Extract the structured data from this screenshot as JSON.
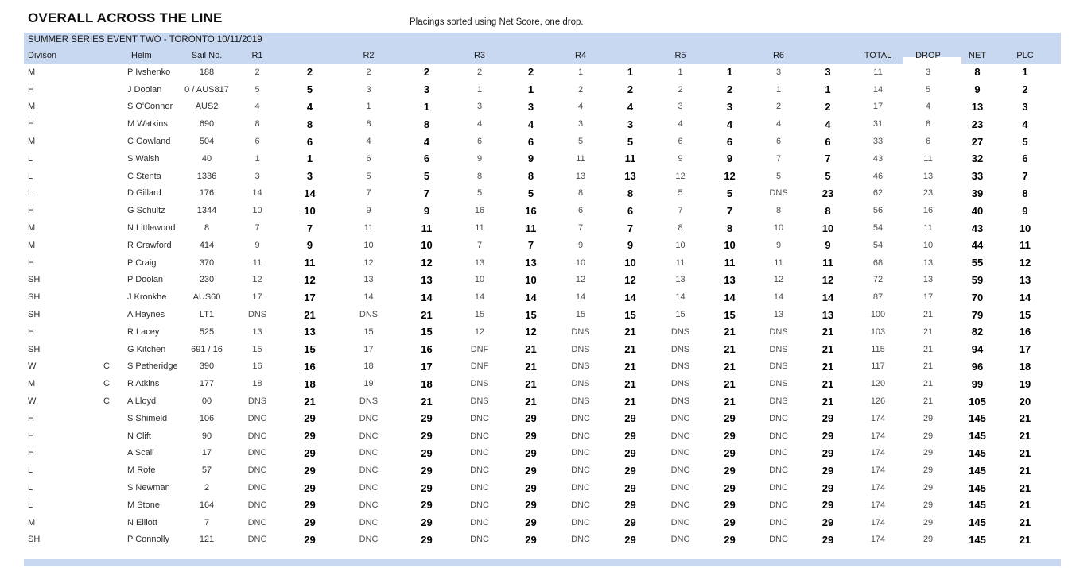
{
  "page": {
    "title": "OVERALL ACROSS THE LINE",
    "subtitle": "Placings sorted using Net Score, one drop.",
    "series_title": "SUMMER SERIES EVENT TWO - TORONTO 10/11/2019"
  },
  "colors": {
    "header_band": "#c9d8f1"
  },
  "table": {
    "headers": {
      "division": "Divison",
      "helm": "Helm",
      "sail_no": "Sail No.",
      "races": [
        "R1",
        "R2",
        "R3",
        "R4",
        "R5",
        "R6"
      ],
      "total": "TOTAL",
      "drop": "DROP",
      "net": "NET",
      "plc": "PLC"
    },
    "rows": [
      {
        "division": "M",
        "crew": "",
        "helm": "P Ivshenko",
        "sail": "188",
        "r": [
          "2",
          "2",
          "2",
          "2",
          "2",
          "2",
          "1",
          "1",
          "1",
          "1",
          "3",
          "3"
        ],
        "total": "11",
        "drop": "3",
        "net": "8",
        "plc": "1"
      },
      {
        "division": "H",
        "crew": "",
        "helm": "J Doolan",
        "sail": "0 / AUS817",
        "r": [
          "5",
          "5",
          "3",
          "3",
          "1",
          "1",
          "2",
          "2",
          "2",
          "2",
          "1",
          "1"
        ],
        "total": "14",
        "drop": "5",
        "net": "9",
        "plc": "2"
      },
      {
        "division": "M",
        "crew": "",
        "helm": "S O'Connor",
        "sail": "AUS2",
        "r": [
          "4",
          "4",
          "1",
          "1",
          "3",
          "3",
          "4",
          "4",
          "3",
          "3",
          "2",
          "2"
        ],
        "total": "17",
        "drop": "4",
        "net": "13",
        "plc": "3"
      },
      {
        "division": "H",
        "crew": "",
        "helm": "M Watkins",
        "sail": "690",
        "r": [
          "8",
          "8",
          "8",
          "8",
          "4",
          "4",
          "3",
          "3",
          "4",
          "4",
          "4",
          "4"
        ],
        "total": "31",
        "drop": "8",
        "net": "23",
        "plc": "4"
      },
      {
        "division": "M",
        "crew": "",
        "helm": "C Gowland",
        "sail": "504",
        "r": [
          "6",
          "6",
          "4",
          "4",
          "6",
          "6",
          "5",
          "5",
          "6",
          "6",
          "6",
          "6"
        ],
        "total": "33",
        "drop": "6",
        "net": "27",
        "plc": "5"
      },
      {
        "division": "L",
        "crew": "",
        "helm": "S Walsh",
        "sail": "40",
        "r": [
          "1",
          "1",
          "6",
          "6",
          "9",
          "9",
          "11",
          "11",
          "9",
          "9",
          "7",
          "7"
        ],
        "total": "43",
        "drop": "11",
        "net": "32",
        "plc": "6"
      },
      {
        "division": "L",
        "crew": "",
        "helm": "C Stenta",
        "sail": "1336",
        "r": [
          "3",
          "3",
          "5",
          "5",
          "8",
          "8",
          "13",
          "13",
          "12",
          "12",
          "5",
          "5"
        ],
        "total": "46",
        "drop": "13",
        "net": "33",
        "plc": "7"
      },
      {
        "division": "L",
        "crew": "",
        "helm": "D Gillard",
        "sail": "176",
        "r": [
          "14",
          "14",
          "7",
          "7",
          "5",
          "5",
          "8",
          "8",
          "5",
          "5",
          "DNS",
          "23"
        ],
        "total": "62",
        "drop": "23",
        "net": "39",
        "plc": "8"
      },
      {
        "division": "H",
        "crew": "",
        "helm": "G Schultz",
        "sail": "1344",
        "r": [
          "10",
          "10",
          "9",
          "9",
          "16",
          "16",
          "6",
          "6",
          "7",
          "7",
          "8",
          "8"
        ],
        "total": "56",
        "drop": "16",
        "net": "40",
        "plc": "9"
      },
      {
        "division": "M",
        "crew": "",
        "helm": "N Littlewood",
        "sail": "8",
        "r": [
          "7",
          "7",
          "11",
          "11",
          "11",
          "11",
          "7",
          "7",
          "8",
          "8",
          "10",
          "10"
        ],
        "total": "54",
        "drop": "11",
        "net": "43",
        "plc": "10"
      },
      {
        "division": "M",
        "crew": "",
        "helm": "R Crawford",
        "sail": "414",
        "r": [
          "9",
          "9",
          "10",
          "10",
          "7",
          "7",
          "9",
          "9",
          "10",
          "10",
          "9",
          "9"
        ],
        "total": "54",
        "drop": "10",
        "net": "44",
        "plc": "11"
      },
      {
        "division": "H",
        "crew": "",
        "helm": "P Craig",
        "sail": "370",
        "r": [
          "11",
          "11",
          "12",
          "12",
          "13",
          "13",
          "10",
          "10",
          "11",
          "11",
          "11",
          "11"
        ],
        "total": "68",
        "drop": "13",
        "net": "55",
        "plc": "12"
      },
      {
        "division": "SH",
        "crew": "",
        "helm": "P Doolan",
        "sail": "230",
        "r": [
          "12",
          "12",
          "13",
          "13",
          "10",
          "10",
          "12",
          "12",
          "13",
          "13",
          "12",
          "12"
        ],
        "total": "72",
        "drop": "13",
        "net": "59",
        "plc": "13"
      },
      {
        "division": "SH",
        "crew": "",
        "helm": "J Kronkhe",
        "sail": "AUS60",
        "r": [
          "17",
          "17",
          "14",
          "14",
          "14",
          "14",
          "14",
          "14",
          "14",
          "14",
          "14",
          "14"
        ],
        "total": "87",
        "drop": "17",
        "net": "70",
        "plc": "14"
      },
      {
        "division": "SH",
        "crew": "",
        "helm": "A Haynes",
        "sail": "LT1",
        "r": [
          "DNS",
          "21",
          "DNS",
          "21",
          "15",
          "15",
          "15",
          "15",
          "15",
          "15",
          "13",
          "13"
        ],
        "total": "100",
        "drop": "21",
        "net": "79",
        "plc": "15"
      },
      {
        "division": "H",
        "crew": "",
        "helm": "R Lacey",
        "sail": "525",
        "r": [
          "13",
          "13",
          "15",
          "15",
          "12",
          "12",
          "DNS",
          "21",
          "DNS",
          "21",
          "DNS",
          "21"
        ],
        "total": "103",
        "drop": "21",
        "net": "82",
        "plc": "16"
      },
      {
        "division": "SH",
        "crew": "",
        "helm": "G Kitchen",
        "sail": "691 / 16",
        "r": [
          "15",
          "15",
          "17",
          "16",
          "DNF",
          "21",
          "DNS",
          "21",
          "DNS",
          "21",
          "DNS",
          "21"
        ],
        "total": "115",
        "drop": "21",
        "net": "94",
        "plc": "17"
      },
      {
        "division": "W",
        "crew": "C",
        "helm": "S Petheridge",
        "sail": "390",
        "r": [
          "16",
          "16",
          "18",
          "17",
          "DNF",
          "21",
          "DNS",
          "21",
          "DNS",
          "21",
          "DNS",
          "21"
        ],
        "total": "117",
        "drop": "21",
        "net": "96",
        "plc": "18"
      },
      {
        "division": "M",
        "crew": "C",
        "helm": "R Atkins",
        "sail": "177",
        "r": [
          "18",
          "18",
          "19",
          "18",
          "DNS",
          "21",
          "DNS",
          "21",
          "DNS",
          "21",
          "DNS",
          "21"
        ],
        "total": "120",
        "drop": "21",
        "net": "99",
        "plc": "19"
      },
      {
        "division": "W",
        "crew": "C",
        "helm": "A Lloyd",
        "sail": "00",
        "r": [
          "DNS",
          "21",
          "DNS",
          "21",
          "DNS",
          "21",
          "DNS",
          "21",
          "DNS",
          "21",
          "DNS",
          "21"
        ],
        "total": "126",
        "drop": "21",
        "net": "105",
        "plc": "20"
      },
      {
        "division": "H",
        "crew": "",
        "helm": "S Shimeld",
        "sail": "106",
        "r": [
          "DNC",
          "29",
          "DNC",
          "29",
          "DNC",
          "29",
          "DNC",
          "29",
          "DNC",
          "29",
          "DNC",
          "29"
        ],
        "total": "174",
        "drop": "29",
        "net": "145",
        "plc": "21"
      },
      {
        "division": "H",
        "crew": "",
        "helm": "N Clift",
        "sail": "90",
        "r": [
          "DNC",
          "29",
          "DNC",
          "29",
          "DNC",
          "29",
          "DNC",
          "29",
          "DNC",
          "29",
          "DNC",
          "29"
        ],
        "total": "174",
        "drop": "29",
        "net": "145",
        "plc": "21"
      },
      {
        "division": "H",
        "crew": "",
        "helm": "A Scali",
        "sail": "17",
        "r": [
          "DNC",
          "29",
          "DNC",
          "29",
          "DNC",
          "29",
          "DNC",
          "29",
          "DNC",
          "29",
          "DNC",
          "29"
        ],
        "total": "174",
        "drop": "29",
        "net": "145",
        "plc": "21"
      },
      {
        "division": "L",
        "crew": "",
        "helm": "M Rofe",
        "sail": "57",
        "r": [
          "DNC",
          "29",
          "DNC",
          "29",
          "DNC",
          "29",
          "DNC",
          "29",
          "DNC",
          "29",
          "DNC",
          "29"
        ],
        "total": "174",
        "drop": "29",
        "net": "145",
        "plc": "21"
      },
      {
        "division": "L",
        "crew": "",
        "helm": "S Newman",
        "sail": "2",
        "r": [
          "DNC",
          "29",
          "DNC",
          "29",
          "DNC",
          "29",
          "DNC",
          "29",
          "DNC",
          "29",
          "DNC",
          "29"
        ],
        "total": "174",
        "drop": "29",
        "net": "145",
        "plc": "21"
      },
      {
        "division": "L",
        "crew": "",
        "helm": "M Stone",
        "sail": "164",
        "r": [
          "DNC",
          "29",
          "DNC",
          "29",
          "DNC",
          "29",
          "DNC",
          "29",
          "DNC",
          "29",
          "DNC",
          "29"
        ],
        "total": "174",
        "drop": "29",
        "net": "145",
        "plc": "21"
      },
      {
        "division": "M",
        "crew": "",
        "helm": "N Elliott",
        "sail": "7",
        "r": [
          "DNC",
          "29",
          "DNC",
          "29",
          "DNC",
          "29",
          "DNC",
          "29",
          "DNC",
          "29",
          "DNC",
          "29"
        ],
        "total": "174",
        "drop": "29",
        "net": "145",
        "plc": "21"
      },
      {
        "division": "SH",
        "crew": "",
        "helm": "P Connolly",
        "sail": "121",
        "r": [
          "DNC",
          "29",
          "DNC",
          "29",
          "DNC",
          "29",
          "DNC",
          "29",
          "DNC",
          "29",
          "DNC",
          "29"
        ],
        "total": "174",
        "drop": "29",
        "net": "145",
        "plc": "21"
      }
    ]
  }
}
